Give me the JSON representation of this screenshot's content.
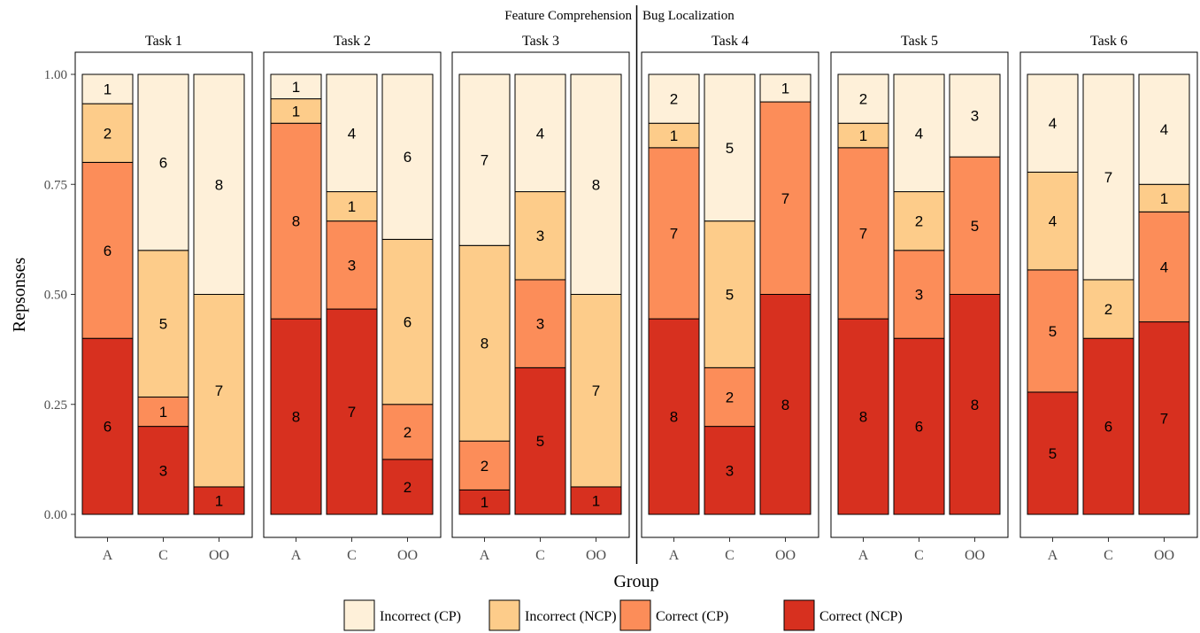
{
  "chart_data": {
    "type": "bar",
    "stacked": true,
    "normalized": true,
    "section_labels": [
      "Feature Comprehension",
      "Bug Localization"
    ],
    "ylabel": "Repsonses",
    "xlabel": "Group",
    "ylim": [
      0,
      1
    ],
    "y_ticks": [
      "0.00",
      "0.25",
      "0.50",
      "0.75",
      "1.00"
    ],
    "groups": [
      "A",
      "C",
      "OO"
    ],
    "legend_position": "bottom",
    "series": [
      {
        "name": "Incorrect (CP)",
        "color": "#fef0d9"
      },
      {
        "name": "Incorrect (NCP)",
        "color": "#fdcc8a"
      },
      {
        "name": "Correct (CP)",
        "color": "#fc8d59"
      },
      {
        "name": "Correct (NCP)",
        "color": "#d7301f"
      }
    ],
    "panels": [
      {
        "title": "Task 1",
        "counts": {
          "A": [
            1,
            2,
            6,
            6
          ],
          "C": [
            6,
            5,
            1,
            3
          ],
          "OO": [
            8,
            7,
            0,
            1
          ]
        }
      },
      {
        "title": "Task 2",
        "counts": {
          "A": [
            1,
            1,
            8,
            8
          ],
          "C": [
            4,
            1,
            3,
            7
          ],
          "OO": [
            6,
            6,
            2,
            2
          ]
        }
      },
      {
        "title": "Task 3",
        "counts": {
          "A": [
            7,
            8,
            2,
            1
          ],
          "C": [
            4,
            3,
            3,
            5
          ],
          "OO": [
            8,
            7,
            0,
            1
          ]
        }
      },
      {
        "title": "Task 4",
        "counts": {
          "A": [
            2,
            1,
            7,
            8
          ],
          "C": [
            5,
            5,
            2,
            3
          ],
          "OO": [
            1,
            0,
            7,
            8
          ]
        }
      },
      {
        "title": "Task 5",
        "counts": {
          "A": [
            2,
            1,
            7,
            8
          ],
          "C": [
            4,
            2,
            3,
            6
          ],
          "OO": [
            3,
            0,
            5,
            8
          ]
        }
      },
      {
        "title": "Task 6",
        "counts": {
          "A": [
            4,
            4,
            5,
            5
          ],
          "C": [
            7,
            2,
            0,
            6
          ],
          "OO": [
            4,
            1,
            4,
            7
          ]
        }
      }
    ]
  }
}
